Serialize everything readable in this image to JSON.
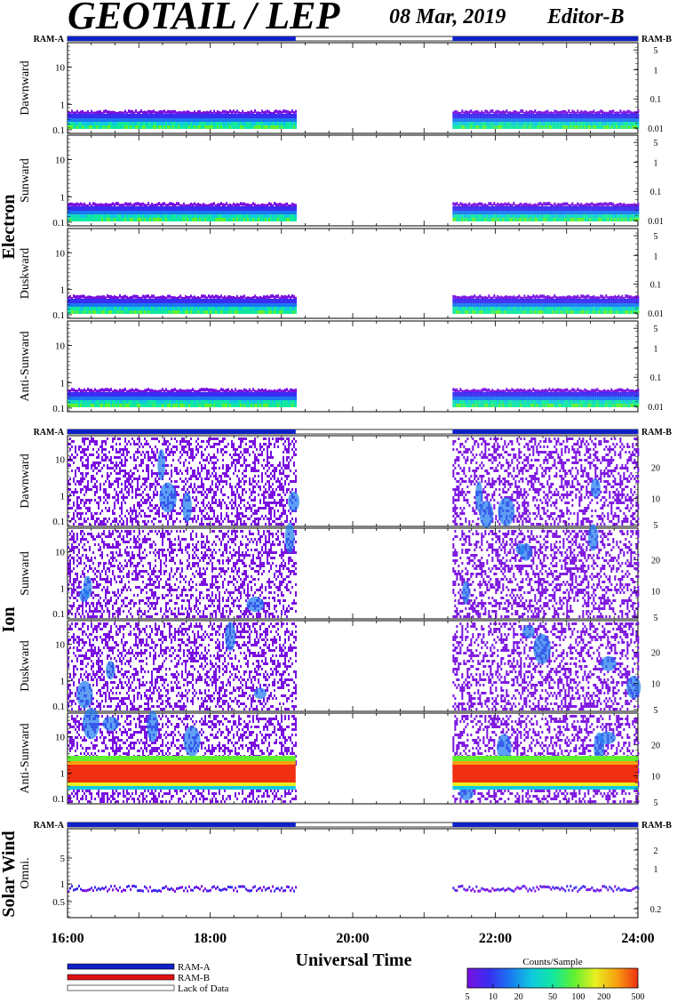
{
  "header": {
    "title": "GEOTAIL / LEP",
    "date": "08 Mar, 2019",
    "editor": "Editor-B"
  },
  "colors": {
    "ram_a": "#1020c8",
    "ram_b": "#e01010",
    "axis": "#000000"
  },
  "labels": {
    "ram_a": "RAM-A",
    "ram_b": "RAM-B",
    "lack_of_data": "Lack of Data",
    "xlabel": "Universal Time",
    "colorbar_title": "Counts/Sample"
  },
  "groups": [
    {
      "name": "Electron",
      "panels": [
        "Dawnward",
        "Sunward",
        "Duskward",
        "Anti-Sunward"
      ]
    },
    {
      "name": "Ion",
      "panels": [
        "Dawnward",
        "Sunward",
        "Duskward",
        "Anti-Sunward"
      ]
    },
    {
      "name": "Solar Wind",
      "panels": [
        "Omni."
      ]
    }
  ],
  "chart_data": {
    "type": "heatmap",
    "x_ticks": [
      "16:00",
      "18:00",
      "20:00",
      "22:00",
      "24:00"
    ],
    "x_range_hours": [
      16,
      24
    ],
    "data_coverage_hours": [
      [
        16.0,
        19.2
      ],
      [
        21.4,
        24.0
      ]
    ],
    "electron_left_ticks": [
      "10",
      "1",
      "0.1"
    ],
    "electron_right_ticks": [
      "5",
      "1",
      "0.1",
      "0.01"
    ],
    "ion_left_ticks": [
      "10",
      "1",
      "0.1"
    ],
    "ion_right_ticks": [
      "20",
      "10",
      "5"
    ],
    "solar_left_ticks": [
      "5",
      "1",
      "0.5"
    ],
    "solar_right_ticks": [
      "2",
      "1",
      "0.2"
    ],
    "colorbar_ticks": [
      "5",
      "10",
      "20",
      "50",
      "100",
      "200",
      "500"
    ],
    "colorbar_range": [
      5,
      500
    ]
  }
}
